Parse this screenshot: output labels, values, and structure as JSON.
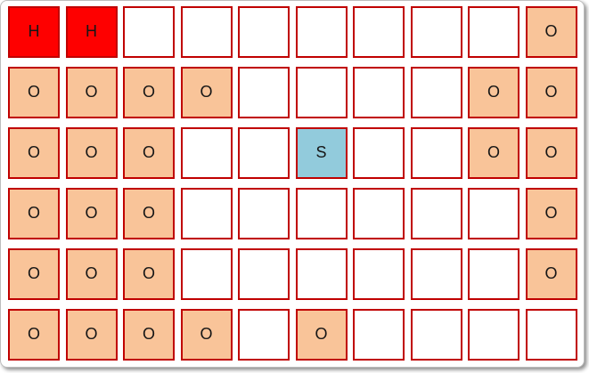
{
  "board": {
    "rows": 6,
    "cols": 10,
    "cells": [
      [
        "H",
        "H",
        "",
        "",
        "",
        "",
        "",
        "",
        "",
        "O"
      ],
      [
        "O",
        "O",
        "O",
        "O",
        "",
        "",
        "",
        "",
        "O",
        "O"
      ],
      [
        "O",
        "O",
        "O",
        "",
        "",
        "S",
        "",
        "",
        "O",
        "O"
      ],
      [
        "O",
        "O",
        "O",
        "",
        "",
        "",
        "",
        "",
        "",
        "O"
      ],
      [
        "O",
        "O",
        "O",
        "",
        "",
        "",
        "",
        "",
        "",
        "O"
      ],
      [
        "O",
        "O",
        "O",
        "O",
        "",
        "O",
        "",
        "",
        "",
        ""
      ]
    ],
    "colors": {
      "hazard_fill": "#fe0000",
      "marked_fill": "#f9c499",
      "start_fill": "#92cbdc",
      "empty_fill": "#ffffff",
      "cell_border": "#c00000",
      "label_color": "#161616",
      "canvas_background": "#ffffff",
      "canvas_border": "#bdbdbd"
    }
  }
}
